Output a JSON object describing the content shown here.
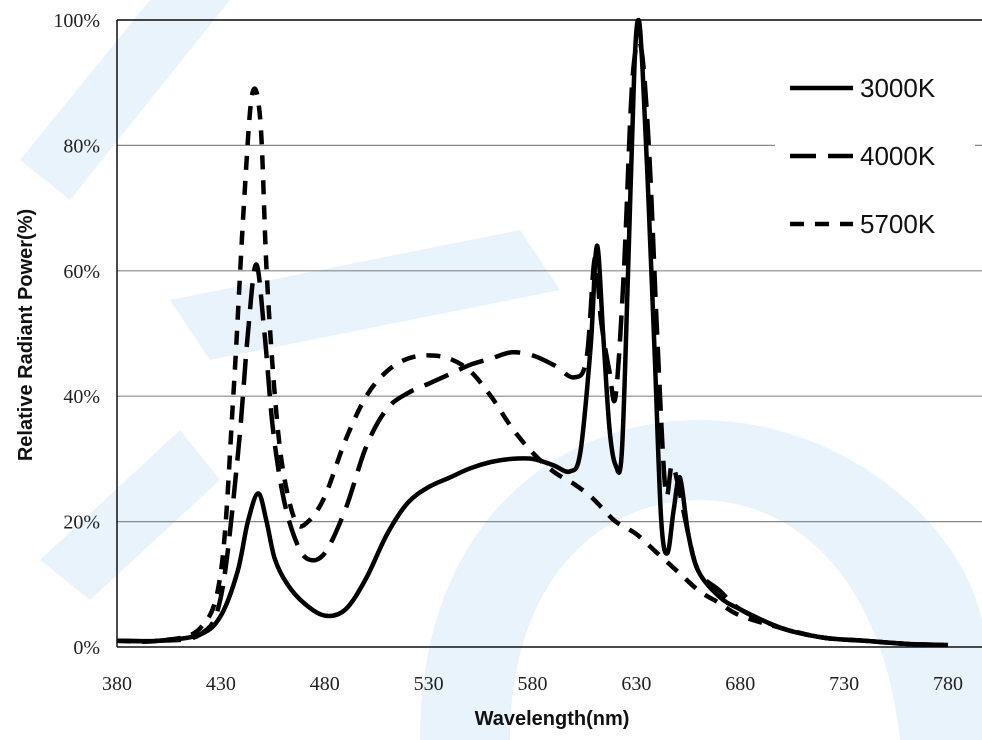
{
  "chart_data": {
    "type": "line",
    "title": "",
    "xlabel": "Wavelength(nm)",
    "ylabel": "Relative Radiant Power(%)",
    "xlim": [
      380,
      780
    ],
    "ylim": [
      0,
      100
    ],
    "x_ticks": [
      "380",
      "430",
      "480",
      "530",
      "580",
      "630",
      "680",
      "730",
      "780"
    ],
    "y_ticks": [
      "0%",
      "20%",
      "40%",
      "60%",
      "80%",
      "100%"
    ],
    "grid": "horizontal",
    "legend_position": "top-right",
    "series": [
      {
        "name": "3000K",
        "style": "solid",
        "x": [
          380,
          400,
          420,
          430,
          438,
          443,
          448,
          452,
          456,
          462,
          470,
          480,
          490,
          500,
          510,
          520,
          530,
          540,
          550,
          560,
          570,
          580,
          590,
          598,
          603,
          608,
          611,
          614,
          617,
          620,
          623,
          626,
          629,
          631,
          633,
          636,
          639,
          642,
          645,
          648,
          651,
          655,
          660,
          670,
          680,
          700,
          720,
          740,
          760,
          780
        ],
        "y": [
          1,
          1,
          2,
          5,
          12,
          20,
          24.5,
          20,
          14,
          10,
          7,
          5,
          6,
          11,
          18,
          23,
          25.5,
          27,
          28.5,
          29.5,
          30,
          30,
          29,
          28,
          31,
          48,
          64,
          50,
          35,
          29,
          31,
          60,
          92,
          100,
          92,
          70,
          45,
          20,
          15,
          22,
          27,
          18,
          12,
          8,
          6,
          3,
          1.5,
          1,
          0.5,
          0.3
        ]
      },
      {
        "name": "4000K",
        "style": "long-dash",
        "x": [
          380,
          400,
          420,
          430,
          438,
          443,
          447,
          451,
          455,
          460,
          466,
          472,
          480,
          490,
          500,
          510,
          520,
          530,
          540,
          550,
          560,
          570,
          580,
          590,
          600,
          606,
          610,
          613,
          617,
          620,
          624,
          628,
          632,
          636,
          640,
          644,
          647,
          650,
          655,
          660,
          670,
          680,
          700,
          720,
          740,
          760,
          780
        ],
        "y": [
          1,
          1,
          2,
          8,
          30,
          50,
          61,
          50,
          35,
          24,
          17,
          14,
          15,
          22,
          32,
          38,
          40.5,
          42,
          43.5,
          45,
          46,
          47,
          46.5,
          45,
          43,
          46,
          62,
          52,
          44,
          40,
          60,
          90,
          96,
          80,
          50,
          25,
          29,
          26,
          18,
          12,
          9,
          6,
          3,
          1.5,
          1,
          0.5,
          0.3
        ]
      },
      {
        "name": "5700K",
        "style": "short-dash",
        "x": [
          380,
          400,
          420,
          430,
          436,
          441,
          445,
          449,
          452,
          456,
          460,
          466,
          472,
          480,
          490,
          500,
          510,
          520,
          530,
          540,
          550,
          560,
          570,
          580,
          590,
          600,
          608,
          614,
          620,
          630,
          640,
          650,
          660,
          670,
          680,
          700,
          720,
          740,
          760,
          780
        ],
        "y": [
          1,
          1,
          3,
          12,
          40,
          70,
          88,
          84,
          60,
          40,
          28,
          20,
          20,
          24,
          33,
          40,
          44,
          46,
          46.5,
          46,
          44,
          40,
          35,
          31,
          28,
          26,
          24,
          22,
          20,
          18,
          15,
          12,
          9,
          7,
          5,
          3,
          1.5,
          1,
          0.5,
          0.3
        ]
      }
    ]
  }
}
